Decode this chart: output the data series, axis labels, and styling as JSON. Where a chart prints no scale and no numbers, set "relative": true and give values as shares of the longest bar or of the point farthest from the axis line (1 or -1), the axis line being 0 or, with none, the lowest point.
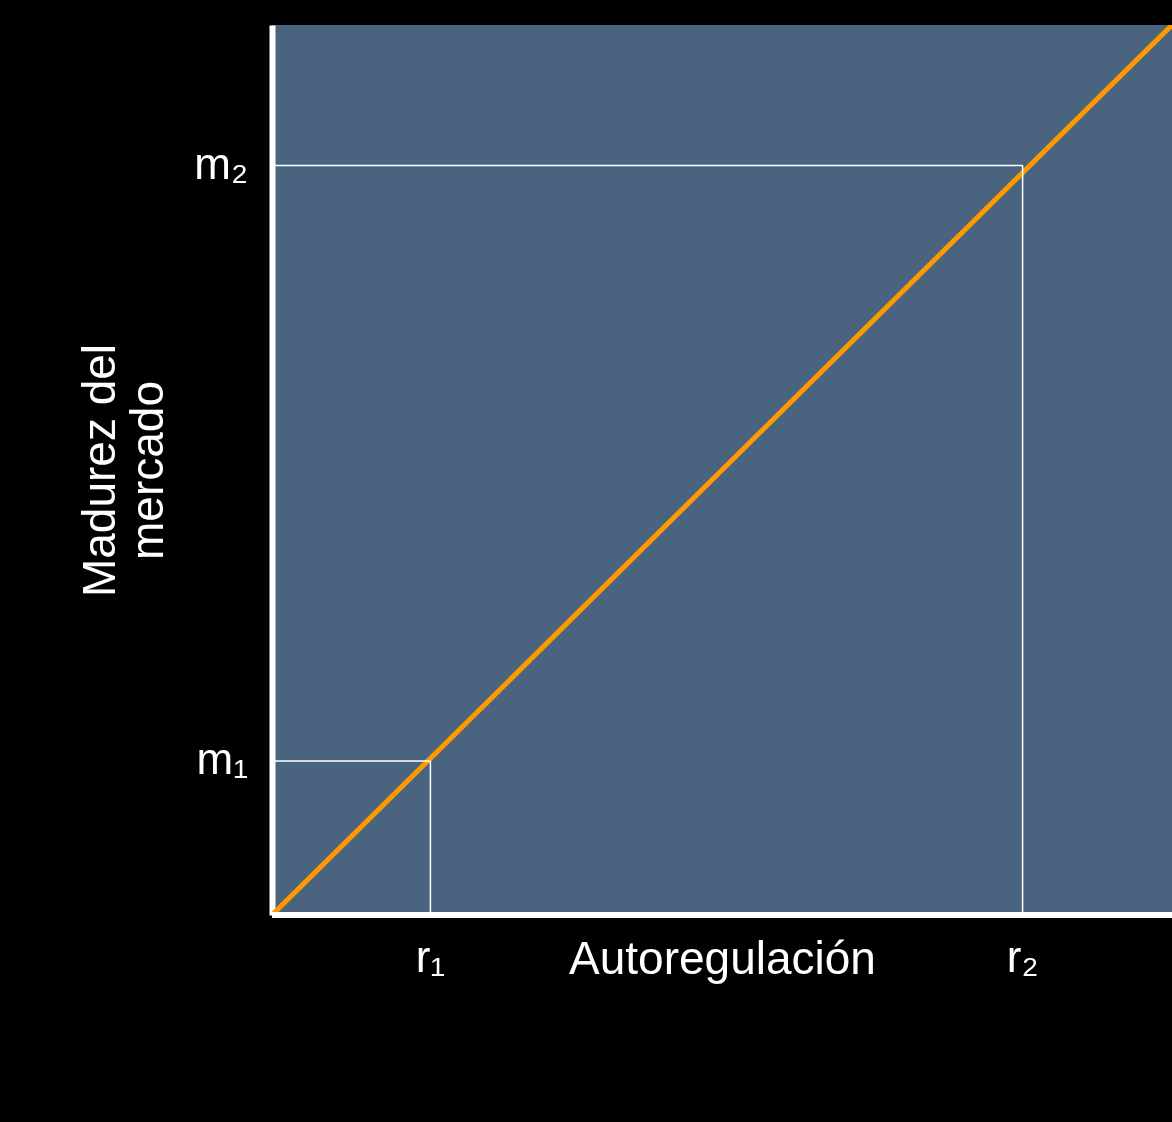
{
  "chart_data": {
    "type": "line",
    "relative": true,
    "xlabel": "Autoregulación",
    "ylabel": "Madurez del mercado",
    "categories": [
      null,
      null
    ],
    "values": [
      0,
      1
    ],
    "color": "#ff9900",
    "annotations": [
      "r₁",
      "m₁",
      "r₂",
      "m₂"
    ],
    "ref_lines": [
      {
        "axis": "y",
        "value": 0,
        "color": "#ffffff"
      }
    ],
    "line_style": "solid",
    "marker": "none"
  }
}
